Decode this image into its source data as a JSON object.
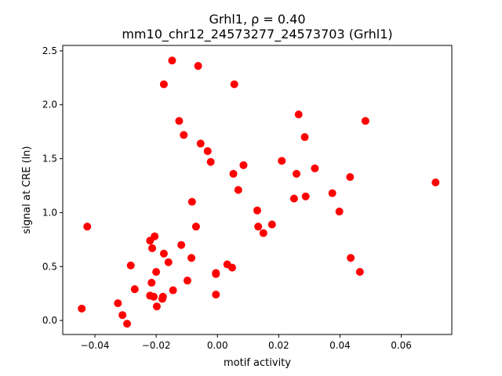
{
  "chart_data": {
    "type": "scatter",
    "title_line1": "Grhl1, ρ = 0.40",
    "title_line2": "mm10_chr12_24573277_24573703 (Grhl1)",
    "xlabel": "motif activity",
    "ylabel": "signal at CRE (ln)",
    "xlim": [
      -0.0505,
      0.0765
    ],
    "ylim": [
      -0.13,
      2.55
    ],
    "xticks": [
      -0.04,
      -0.02,
      0.0,
      0.02,
      0.04,
      0.06
    ],
    "xtick_labels": [
      "−0.04",
      "−0.02",
      "0.00",
      "0.02",
      "0.04",
      "0.06"
    ],
    "yticks": [
      0.0,
      0.5,
      1.0,
      1.5,
      2.0,
      2.5
    ],
    "ytick_labels": [
      "0.0",
      "0.5",
      "1.0",
      "1.5",
      "2.0",
      "2.5"
    ],
    "grid": false,
    "marker_color": "#ff0000",
    "points": [
      {
        "x": -0.0443,
        "y": 0.11
      },
      {
        "x": -0.0425,
        "y": 0.87
      },
      {
        "x": -0.0325,
        "y": 0.16
      },
      {
        "x": -0.031,
        "y": 0.05
      },
      {
        "x": -0.0295,
        "y": -0.03
      },
      {
        "x": -0.0283,
        "y": 0.51
      },
      {
        "x": -0.027,
        "y": 0.29
      },
      {
        "x": -0.022,
        "y": 0.74
      },
      {
        "x": -0.022,
        "y": 0.23
      },
      {
        "x": -0.0215,
        "y": 0.35
      },
      {
        "x": -0.0213,
        "y": 0.67
      },
      {
        "x": -0.0208,
        "y": 0.22
      },
      {
        "x": -0.0205,
        "y": 0.78
      },
      {
        "x": -0.02,
        "y": 0.45
      },
      {
        "x": -0.0198,
        "y": 0.13
      },
      {
        "x": -0.018,
        "y": 0.2
      },
      {
        "x": -0.0178,
        "y": 0.22
      },
      {
        "x": -0.0175,
        "y": 0.62
      },
      {
        "x": -0.0175,
        "y": 2.19
      },
      {
        "x": -0.016,
        "y": 0.54
      },
      {
        "x": -0.0148,
        "y": 2.41
      },
      {
        "x": -0.0145,
        "y": 0.28
      },
      {
        "x": -0.0125,
        "y": 1.85
      },
      {
        "x": -0.0118,
        "y": 0.7
      },
      {
        "x": -0.011,
        "y": 1.72
      },
      {
        "x": -0.0098,
        "y": 0.37
      },
      {
        "x": -0.0085,
        "y": 0.58
      },
      {
        "x": -0.0083,
        "y": 1.1
      },
      {
        "x": -0.007,
        "y": 0.87
      },
      {
        "x": -0.0063,
        "y": 2.36
      },
      {
        "x": -0.0055,
        "y": 1.64
      },
      {
        "x": -0.0032,
        "y": 1.57
      },
      {
        "x": -0.0022,
        "y": 1.47
      },
      {
        "x": -0.0005,
        "y": 0.24
      },
      {
        "x": -0.0005,
        "y": 0.43
      },
      {
        "x": -0.0005,
        "y": 0.44
      },
      {
        "x": 0.0032,
        "y": 0.52
      },
      {
        "x": 0.0048,
        "y": 0.49
      },
      {
        "x": 0.0052,
        "y": 1.36
      },
      {
        "x": 0.0055,
        "y": 2.19
      },
      {
        "x": 0.0068,
        "y": 1.21
      },
      {
        "x": 0.0085,
        "y": 1.44
      },
      {
        "x": 0.013,
        "y": 1.02
      },
      {
        "x": 0.0133,
        "y": 0.87
      },
      {
        "x": 0.015,
        "y": 0.81
      },
      {
        "x": 0.0178,
        "y": 0.89
      },
      {
        "x": 0.021,
        "y": 1.48
      },
      {
        "x": 0.025,
        "y": 1.13
      },
      {
        "x": 0.0258,
        "y": 1.36
      },
      {
        "x": 0.0265,
        "y": 1.91
      },
      {
        "x": 0.0285,
        "y": 1.7
      },
      {
        "x": 0.0288,
        "y": 1.15
      },
      {
        "x": 0.0318,
        "y": 1.41
      },
      {
        "x": 0.0375,
        "y": 1.18
      },
      {
        "x": 0.0398,
        "y": 1.01
      },
      {
        "x": 0.0433,
        "y": 1.33
      },
      {
        "x": 0.0435,
        "y": 0.58
      },
      {
        "x": 0.0465,
        "y": 0.45
      },
      {
        "x": 0.0483,
        "y": 1.85
      },
      {
        "x": 0.0712,
        "y": 1.28
      }
    ]
  }
}
